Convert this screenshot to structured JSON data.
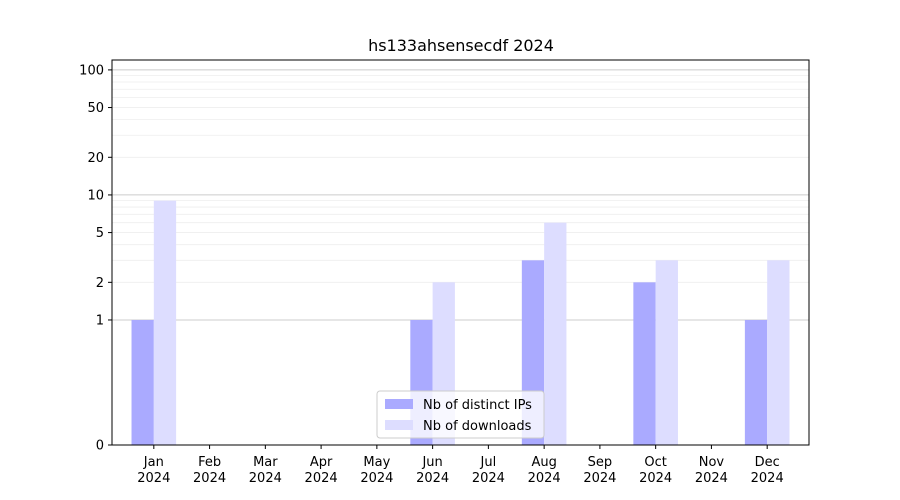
{
  "chart_data": {
    "type": "bar",
    "title": "hs133ahsensecdf 2024",
    "xlabel": "",
    "ylabel": "",
    "y_scale": "symlog",
    "ylim": [
      0,
      120
    ],
    "y_ticks": [
      0,
      1,
      2,
      5,
      10,
      20,
      50,
      100
    ],
    "y_tick_labels": [
      "0",
      "1",
      "2",
      "5",
      "10",
      "20",
      "50",
      "100"
    ],
    "grid": true,
    "legend_position": "bottom-center",
    "categories": [
      [
        "Jan",
        "2024"
      ],
      [
        "Feb",
        "2024"
      ],
      [
        "Mar",
        "2024"
      ],
      [
        "Apr",
        "2024"
      ],
      [
        "May",
        "2024"
      ],
      [
        "Jun",
        "2024"
      ],
      [
        "Jul",
        "2024"
      ],
      [
        "Aug",
        "2024"
      ],
      [
        "Sep",
        "2024"
      ],
      [
        "Oct",
        "2024"
      ],
      [
        "Nov",
        "2024"
      ],
      [
        "Dec",
        "2024"
      ]
    ],
    "series": [
      {
        "name": "Nb of distinct IPs",
        "color": "#aaaaff",
        "values": [
          1,
          0,
          0,
          0,
          0,
          1,
          0,
          3,
          0,
          2,
          0,
          1
        ]
      },
      {
        "name": "Nb of downloads",
        "color": "#ddddff",
        "values": [
          9,
          0,
          0,
          0,
          0,
          2,
          0,
          6,
          0,
          3,
          0,
          3
        ]
      }
    ]
  }
}
